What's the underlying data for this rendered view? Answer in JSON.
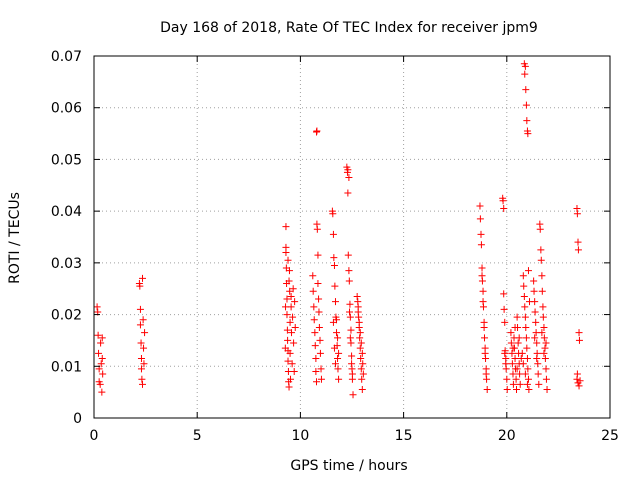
{
  "chart_data": {
    "type": "scatter",
    "title": "Day 168 of 2018, Rate Of TEC Index for receiver jpm9",
    "xlabel": "GPS time / hours",
    "ylabel": "ROTI / TECUs",
    "xlim": [
      0,
      25
    ],
    "ylim": [
      0,
      0.07
    ],
    "grid": true,
    "marker": "+",
    "marker_color": "#ff0000",
    "x_ticks": [
      {
        "value": 0,
        "label": "0"
      },
      {
        "value": 5,
        "label": "5"
      },
      {
        "value": 10,
        "label": "10"
      },
      {
        "value": 15,
        "label": "15"
      },
      {
        "value": 20,
        "label": "20"
      },
      {
        "value": 25,
        "label": "25"
      }
    ],
    "y_ticks": [
      {
        "value": 0,
        "label": "0"
      },
      {
        "value": 0.01,
        "label": "0.01"
      },
      {
        "value": 0.02,
        "label": "0.02"
      },
      {
        "value": 0.03,
        "label": "0.03"
      },
      {
        "value": 0.04,
        "label": "0.04"
      },
      {
        "value": 0.05,
        "label": "0.05"
      },
      {
        "value": 0.06,
        "label": "0.06"
      },
      {
        "value": 0.07,
        "label": "0.07"
      }
    ],
    "series": [
      {
        "name": "ROTI",
        "points": [
          [
            0.15,
            0.0215
          ],
          [
            0.18,
            0.0205
          ],
          [
            0.2,
            0.016
          ],
          [
            0.22,
            0.0125
          ],
          [
            0.25,
            0.0095
          ],
          [
            0.25,
            0.007
          ],
          [
            0.3,
            0.0065
          ],
          [
            0.32,
            0.0145
          ],
          [
            0.35,
            0.0105
          ],
          [
            0.38,
            0.005
          ],
          [
            0.4,
            0.0115
          ],
          [
            0.4,
            0.0155
          ],
          [
            0.42,
            0.0085
          ],
          [
            2.2,
            0.026
          ],
          [
            2.22,
            0.0255
          ],
          [
            2.25,
            0.021
          ],
          [
            2.25,
            0.018
          ],
          [
            2.28,
            0.0145
          ],
          [
            2.3,
            0.0115
          ],
          [
            2.3,
            0.0095
          ],
          [
            2.32,
            0.0075
          ],
          [
            2.35,
            0.0065
          ],
          [
            2.35,
            0.027
          ],
          [
            2.38,
            0.019
          ],
          [
            2.4,
            0.0135
          ],
          [
            2.42,
            0.0105
          ],
          [
            2.45,
            0.0165
          ],
          [
            9.3,
            0.037
          ],
          [
            9.3,
            0.033
          ],
          [
            9.32,
            0.029
          ],
          [
            9.33,
            0.026
          ],
          [
            9.35,
            0.023
          ],
          [
            9.35,
            0.02
          ],
          [
            9.37,
            0.017
          ],
          [
            9.38,
            0.015
          ],
          [
            9.4,
            0.013
          ],
          [
            9.4,
            0.011
          ],
          [
            9.42,
            0.009
          ],
          [
            9.43,
            0.007
          ],
          [
            9.45,
            0.006
          ],
          [
            9.3,
            0.032
          ],
          [
            9.28,
            0.0215
          ],
          [
            9.27,
            0.0135
          ],
          [
            9.47,
            0.0285
          ],
          [
            9.48,
            0.0245
          ],
          [
            9.5,
            0.0185
          ],
          [
            9.5,
            0.0125
          ],
          [
            9.52,
            0.0075
          ],
          [
            9.55,
            0.0215
          ],
          [
            9.57,
            0.0165
          ],
          [
            9.6,
            0.0105
          ],
          [
            9.62,
            0.0195
          ],
          [
            9.65,
            0.025
          ],
          [
            9.67,
            0.0145
          ],
          [
            9.7,
            0.009
          ],
          [
            9.72,
            0.0225
          ],
          [
            9.75,
            0.0175
          ],
          [
            9.4,
            0.0305
          ],
          [
            9.45,
            0.0265
          ],
          [
            9.55,
            0.0235
          ],
          [
            10.6,
            0.0275
          ],
          [
            10.62,
            0.0245
          ],
          [
            10.65,
            0.0215
          ],
          [
            10.67,
            0.019
          ],
          [
            10.7,
            0.0165
          ],
          [
            10.72,
            0.014
          ],
          [
            10.75,
            0.0115
          ],
          [
            10.75,
            0.009
          ],
          [
            10.78,
            0.007
          ],
          [
            10.8,
            0.0375
          ],
          [
            10.82,
            0.0365
          ],
          [
            10.85,
            0.0315
          ],
          [
            10.85,
            0.026
          ],
          [
            10.88,
            0.023
          ],
          [
            10.9,
            0.0205
          ],
          [
            10.92,
            0.0175
          ],
          [
            10.95,
            0.015
          ],
          [
            10.97,
            0.0125
          ],
          [
            11,
            0.0095
          ],
          [
            11.02,
            0.0075
          ],
          [
            10.78,
            0.0553
          ],
          [
            10.8,
            0.0555
          ],
          [
            11.55,
            0.04
          ],
          [
            11.57,
            0.0395
          ],
          [
            11.6,
            0.0355
          ],
          [
            11.62,
            0.031
          ],
          [
            11.65,
            0.0295
          ],
          [
            11.67,
            0.0255
          ],
          [
            11.7,
            0.0225
          ],
          [
            11.72,
            0.0195
          ],
          [
            11.75,
            0.0165
          ],
          [
            11.78,
            0.014
          ],
          [
            11.8,
            0.0115
          ],
          [
            11.82,
            0.0095
          ],
          [
            11.85,
            0.0075
          ],
          [
            11.6,
            0.0185
          ],
          [
            11.65,
            0.0135
          ],
          [
            11.7,
            0.0105
          ],
          [
            11.75,
            0.019
          ],
          [
            11.8,
            0.0155
          ],
          [
            11.85,
            0.0125
          ],
          [
            12.25,
            0.0485
          ],
          [
            12.28,
            0.0475
          ],
          [
            12.3,
            0.0435
          ],
          [
            12.32,
            0.0315
          ],
          [
            12.35,
            0.0285
          ],
          [
            12.37,
            0.0265
          ],
          [
            12.4,
            0.022
          ],
          [
            12.42,
            0.0195
          ],
          [
            12.45,
            0.017
          ],
          [
            12.45,
            0.0145
          ],
          [
            12.48,
            0.012
          ],
          [
            12.5,
            0.0095
          ],
          [
            12.52,
            0.0075
          ],
          [
            12.55,
            0.0045
          ],
          [
            12.3,
            0.048
          ],
          [
            12.35,
            0.0465
          ],
          [
            12.38,
            0.0205
          ],
          [
            12.42,
            0.0155
          ],
          [
            12.48,
            0.0105
          ],
          [
            12.52,
            0.0085
          ],
          [
            12.75,
            0.0235
          ],
          [
            12.78,
            0.0225
          ],
          [
            12.8,
            0.0215
          ],
          [
            12.82,
            0.0195
          ],
          [
            12.85,
            0.0175
          ],
          [
            12.87,
            0.0155
          ],
          [
            12.9,
            0.0135
          ],
          [
            12.92,
            0.0115
          ],
          [
            12.95,
            0.0095
          ],
          [
            12.97,
            0.0075
          ],
          [
            13,
            0.0055
          ],
          [
            12.8,
            0.0205
          ],
          [
            12.85,
            0.0185
          ],
          [
            12.9,
            0.0165
          ],
          [
            12.95,
            0.0145
          ],
          [
            13,
            0.0125
          ],
          [
            13.02,
            0.0105
          ],
          [
            13.05,
            0.0085
          ],
          [
            18.7,
            0.041
          ],
          [
            18.72,
            0.0385
          ],
          [
            18.75,
            0.0355
          ],
          [
            18.77,
            0.0335
          ],
          [
            18.8,
            0.029
          ],
          [
            18.82,
            0.0265
          ],
          [
            18.85,
            0.0245
          ],
          [
            18.87,
            0.0215
          ],
          [
            18.9,
            0.0185
          ],
          [
            18.92,
            0.0155
          ],
          [
            18.95,
            0.0135
          ],
          [
            18.97,
            0.0115
          ],
          [
            19,
            0.0095
          ],
          [
            19.02,
            0.0075
          ],
          [
            19.05,
            0.0055
          ],
          [
            18.8,
            0.0275
          ],
          [
            18.85,
            0.0225
          ],
          [
            18.9,
            0.0175
          ],
          [
            18.95,
            0.0125
          ],
          [
            19,
            0.0085
          ],
          [
            19.8,
            0.0425
          ],
          [
            19.82,
            0.042
          ],
          [
            19.85,
            0.0405
          ],
          [
            19.85,
            0.024
          ],
          [
            19.87,
            0.021
          ],
          [
            19.9,
            0.0185
          ],
          [
            19.92,
            0.013
          ],
          [
            19.95,
            0.0115
          ],
          [
            19.97,
            0.0095
          ],
          [
            20,
            0.0075
          ],
          [
            20.02,
            0.0055
          ],
          [
            19.9,
            0.0125
          ],
          [
            19.95,
            0.0105
          ],
          [
            20.2,
            0.0165
          ],
          [
            20.22,
            0.0145
          ],
          [
            20.25,
            0.0125
          ],
          [
            20.27,
            0.0105
          ],
          [
            20.3,
            0.0085
          ],
          [
            20.32,
            0.0065
          ],
          [
            20.35,
            0.0155
          ],
          [
            20.37,
            0.0135
          ],
          [
            20.4,
            0.0115
          ],
          [
            20.42,
            0.0095
          ],
          [
            20.45,
            0.0075
          ],
          [
            20.47,
            0.0055
          ],
          [
            20.5,
            0.0195
          ],
          [
            20.52,
            0.0175
          ],
          [
            20.55,
            0.0145
          ],
          [
            20.57,
            0.0125
          ],
          [
            20.6,
            0.0105
          ],
          [
            20.62,
            0.0085
          ],
          [
            20.65,
            0.0065
          ],
          [
            20.3,
            0.0135
          ],
          [
            20.4,
            0.0175
          ],
          [
            20.5,
            0.0095
          ],
          [
            20.6,
            0.0155
          ],
          [
            20.7,
            0.0115
          ],
          [
            20.85,
            0.0685
          ],
          [
            20.87,
            0.0665
          ],
          [
            20.9,
            0.068
          ],
          [
            20.92,
            0.0635
          ],
          [
            20.95,
            0.0605
          ],
          [
            20.97,
            0.0575
          ],
          [
            21,
            0.0555
          ],
          [
            21.02,
            0.055
          ],
          [
            20.8,
            0.0275
          ],
          [
            20.82,
            0.0255
          ],
          [
            20.85,
            0.0235
          ],
          [
            20.87,
            0.0215
          ],
          [
            20.9,
            0.0195
          ],
          [
            20.92,
            0.0175
          ],
          [
            20.95,
            0.0155
          ],
          [
            20.97,
            0.0135
          ],
          [
            21,
            0.0115
          ],
          [
            21.02,
            0.0095
          ],
          [
            21.05,
            0.0075
          ],
          [
            21.07,
            0.0055
          ],
          [
            20.75,
            0.0125
          ],
          [
            20.8,
            0.0105
          ],
          [
            20.9,
            0.0085
          ],
          [
            21,
            0.0065
          ],
          [
            21.05,
            0.0285
          ],
          [
            21.1,
            0.0225
          ],
          [
            21.3,
            0.0265
          ],
          [
            21.32,
            0.0245
          ],
          [
            21.35,
            0.0225
          ],
          [
            21.37,
            0.0205
          ],
          [
            21.4,
            0.0185
          ],
          [
            21.42,
            0.0165
          ],
          [
            21.45,
            0.0145
          ],
          [
            21.47,
            0.0125
          ],
          [
            21.5,
            0.0105
          ],
          [
            21.52,
            0.0085
          ],
          [
            21.55,
            0.0065
          ],
          [
            21.35,
            0.0155
          ],
          [
            21.45,
            0.0115
          ],
          [
            21.6,
            0.0375
          ],
          [
            21.62,
            0.0365
          ],
          [
            21.65,
            0.0325
          ],
          [
            21.67,
            0.0305
          ],
          [
            21.7,
            0.0275
          ],
          [
            21.72,
            0.0245
          ],
          [
            21.75,
            0.0215
          ],
          [
            21.77,
            0.0195
          ],
          [
            21.8,
            0.0175
          ],
          [
            21.82,
            0.0155
          ],
          [
            21.85,
            0.0135
          ],
          [
            21.87,
            0.0115
          ],
          [
            21.9,
            0.0095
          ],
          [
            21.92,
            0.0075
          ],
          [
            21.95,
            0.0055
          ],
          [
            21.7,
            0.0165
          ],
          [
            21.8,
            0.0125
          ],
          [
            21.9,
            0.0145
          ],
          [
            23.4,
            0.0405
          ],
          [
            23.42,
            0.0395
          ],
          [
            23.45,
            0.034
          ],
          [
            23.47,
            0.0325
          ],
          [
            23.5,
            0.0165
          ],
          [
            23.52,
            0.015
          ],
          [
            23.4,
            0.0075
          ],
          [
            23.45,
            0.0068
          ],
          [
            23.5,
            0.0062
          ],
          [
            23.55,
            0.0072
          ],
          [
            23.42,
            0.0085
          ]
        ]
      }
    ]
  }
}
